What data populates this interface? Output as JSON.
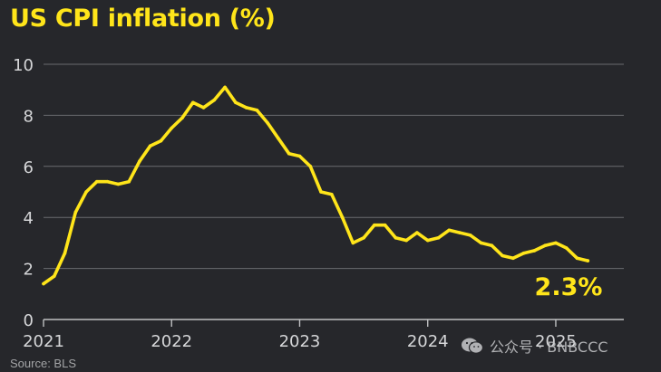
{
  "title": "US CPI inflation (%)",
  "source": "Source: BLS",
  "watermark": "公众号 · BNBCCC",
  "colors": {
    "background": "#26272b",
    "line": "#ffe51a",
    "grid": "#6a6b6f",
    "axis_text": "#d5d6d8"
  },
  "chart_data": {
    "type": "line",
    "title": "US CPI inflation (%)",
    "xlabel": "",
    "ylabel": "",
    "ylim": [
      0,
      10
    ],
    "yticks": [
      "0",
      "2",
      "4",
      "6",
      "8",
      "10"
    ],
    "xticks": [
      "2021",
      "2022",
      "2023",
      "2024",
      "2025"
    ],
    "x_start": "2021-01",
    "x_end": "2025-04",
    "grid": true,
    "end_label": "2.3%",
    "series": [
      {
        "x": [
          "2021-01",
          "2021-02",
          "2021-03",
          "2021-04",
          "2021-05",
          "2021-06",
          "2021-07",
          "2021-08",
          "2021-09",
          "2021-10",
          "2021-11",
          "2021-12",
          "2022-01",
          "2022-02",
          "2022-03",
          "2022-04",
          "2022-05",
          "2022-06",
          "2022-07",
          "2022-08",
          "2022-09",
          "2022-10",
          "2022-11",
          "2022-12",
          "2023-01",
          "2023-02",
          "2023-03",
          "2023-04",
          "2023-05",
          "2023-06",
          "2023-07",
          "2023-08",
          "2023-09",
          "2023-10",
          "2023-11",
          "2023-12",
          "2024-01",
          "2024-02",
          "2024-03",
          "2024-04",
          "2024-05",
          "2024-06",
          "2024-07",
          "2024-08",
          "2024-09",
          "2024-10",
          "2024-11",
          "2024-12",
          "2025-01",
          "2025-02",
          "2025-03",
          "2025-04"
        ],
        "values": [
          1.4,
          1.7,
          2.6,
          4.2,
          5.0,
          5.4,
          5.4,
          5.3,
          5.4,
          6.2,
          6.8,
          7.0,
          7.5,
          7.9,
          8.5,
          8.3,
          8.6,
          9.1,
          8.5,
          8.3,
          8.2,
          7.7,
          7.1,
          6.5,
          6.4,
          6.0,
          5.0,
          4.9,
          4.0,
          3.0,
          3.2,
          3.7,
          3.7,
          3.2,
          3.1,
          3.4,
          3.1,
          3.2,
          3.5,
          3.4,
          3.3,
          3.0,
          2.9,
          2.5,
          2.4,
          2.6,
          2.7,
          2.9,
          3.0,
          2.8,
          2.4,
          2.3
        ]
      }
    ]
  }
}
